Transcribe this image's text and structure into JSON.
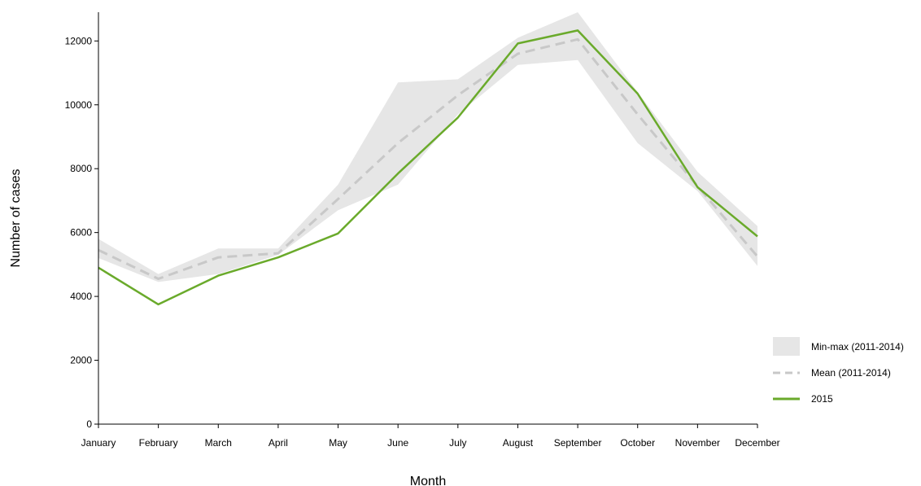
{
  "chart_data": {
    "type": "line",
    "title": "",
    "xlabel": "Month",
    "ylabel": "Number of cases",
    "categories": [
      "January",
      "February",
      "March",
      "April",
      "May",
      "June",
      "July",
      "August",
      "September",
      "October",
      "November",
      "December"
    ],
    "ylim": [
      0,
      12900
    ],
    "yticks": [
      0,
      2000,
      4000,
      6000,
      8000,
      10000,
      12000
    ],
    "ytick_labels": [
      "0",
      "2000",
      "4000",
      "6000",
      "8000",
      "10000",
      "12000"
    ],
    "grid": false,
    "legend_position": "right",
    "series": [
      {
        "name": "Min-max (2011-2014)",
        "kind": "band",
        "color": "#e6e6e6",
        "min": [
          5200,
          4450,
          4700,
          5300,
          6700,
          7500,
          9700,
          11250,
          11400,
          8800,
          7300,
          4950
        ],
        "max": [
          5800,
          4700,
          5500,
          5500,
          7500,
          10700,
          10800,
          12100,
          12900,
          10400,
          7900,
          6200
        ]
      },
      {
        "name": "Mean (2011-2014)",
        "kind": "line",
        "dashed": true,
        "color": "#c8c8c8",
        "values": [
          5450,
          4550,
          5220,
          5350,
          7050,
          8800,
          10300,
          11600,
          12050,
          9700,
          7450,
          5250
        ]
      },
      {
        "name": "2015",
        "kind": "line",
        "dashed": false,
        "color": "#6aaa2b",
        "values": [
          4900,
          3750,
          4650,
          5220,
          5970,
          7850,
          9600,
          11920,
          12330,
          10350,
          7420,
          5880
        ]
      }
    ]
  }
}
